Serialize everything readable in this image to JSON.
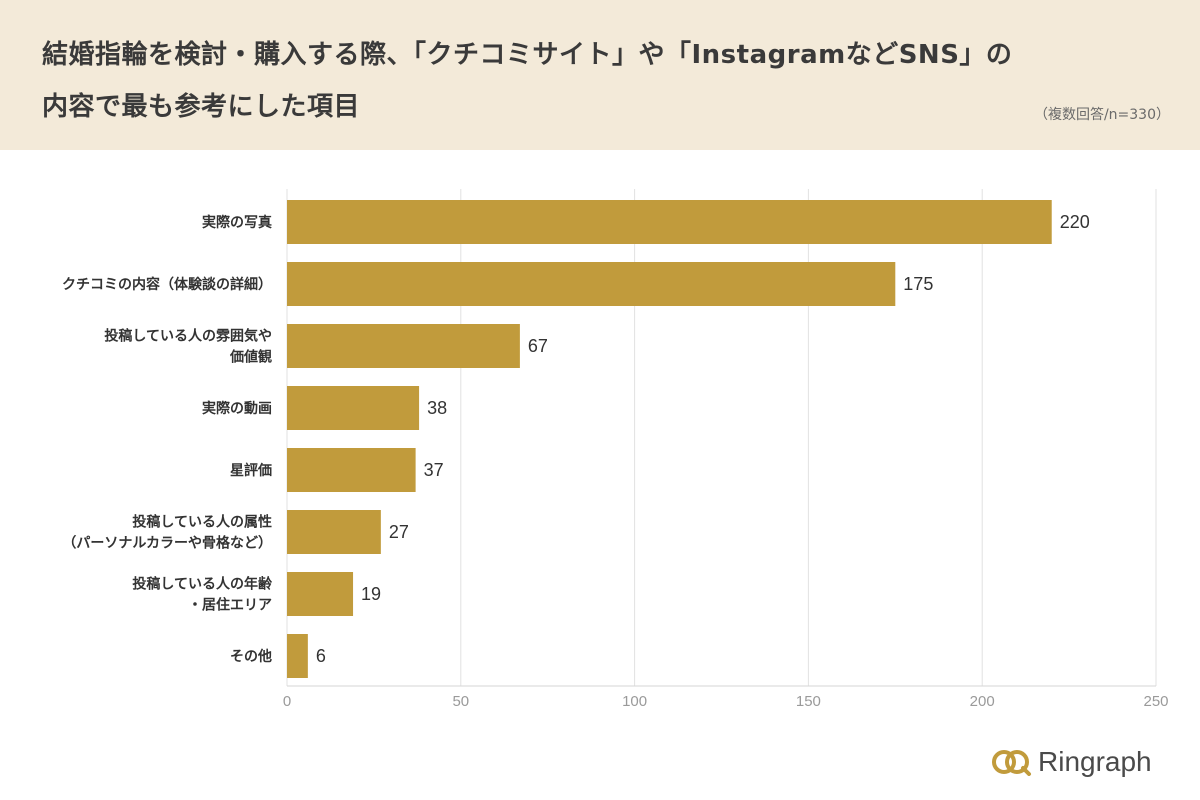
{
  "header": {
    "title_line1": "結婚指輪を検討・購入する際、「クチコミサイト」や「InstagramなどSNS」の",
    "title_line2": "内容で最も参考にした項目",
    "note": "（複数回答/n=330）"
  },
  "brand": {
    "name": "Ringraph",
    "icon": "two-rings-logo-icon"
  },
  "colors": {
    "header_bg": "#f3ead9",
    "bar": "#c19b3c",
    "grid": "#e2e2e2",
    "tick_label": "#9a9a9a",
    "brand_icon": "#c19b3c"
  },
  "chart_data": {
    "type": "bar",
    "orientation": "horizontal",
    "categories": [
      [
        "実際の写真"
      ],
      [
        "クチコミの内容（体験談の詳細）"
      ],
      [
        "投稿している人の雰囲気や",
        "価値観"
      ],
      [
        "実際の動画"
      ],
      [
        "星評価"
      ],
      [
        "投稿している人の属性",
        "（パーソナルカラーや骨格など）"
      ],
      [
        "投稿している人の年齢",
        "・居住エリア"
      ],
      [
        "その他"
      ]
    ],
    "values": [
      220,
      175,
      67,
      38,
      37,
      27,
      19,
      6
    ],
    "xlim": [
      0,
      250
    ],
    "xticks": [
      0,
      50,
      100,
      150,
      200,
      250
    ],
    "grid": true,
    "data_labels": true
  }
}
